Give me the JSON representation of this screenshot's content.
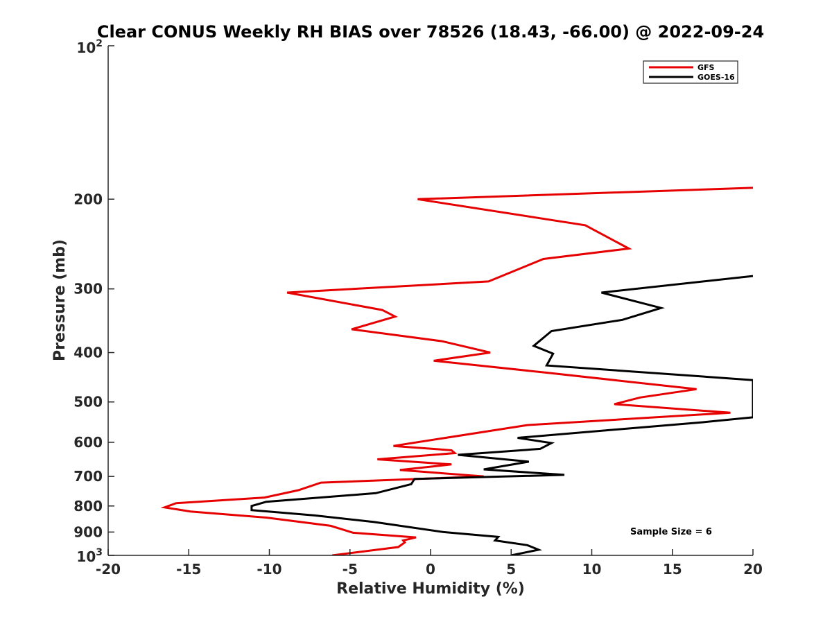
{
  "chart_data": {
    "type": "line",
    "title": "Clear CONUS Weekly RH BIAS over 78526 (18.43, -66.00) @ 2022-09-24",
    "xlabel": "Relative Humidity (%)",
    "ylabel": "Pressure (mb)",
    "xlim": [
      -20,
      20
    ],
    "ylim": [
      100,
      1000
    ],
    "y_scale": "log",
    "y_reversed": true,
    "grid": false,
    "legend_position": "top-right",
    "x_ticks": [
      -20,
      -15,
      -10,
      -5,
      0,
      5,
      10,
      15,
      20
    ],
    "x_tick_labels": [
      "-20",
      "-15",
      "-10",
      "-5",
      "0",
      "5",
      "10",
      "15",
      "20"
    ],
    "y_ticks": [
      200,
      300,
      400,
      500,
      600,
      700,
      800,
      900
    ],
    "y_tick_labels": [
      "200",
      "300",
      "400",
      "500",
      "600",
      "700",
      "800",
      "900"
    ],
    "y_end_labels": {
      "top_base": "10",
      "top_exp": "2",
      "bottom_base": "10",
      "bottom_exp": "3"
    },
    "series": [
      {
        "name": "GFS",
        "color": "#e60000",
        "x": [
          20.0,
          -0.8,
          9.6,
          12.3,
          7.0,
          3.6,
          -8.9,
          -3.0,
          -2.2,
          -4.9,
          0.7,
          3.7,
          0.2,
          7.2,
          16.5,
          13.0,
          11.4,
          18.6,
          6.0,
          -2.3,
          1.3,
          1.5,
          -3.3,
          1.3,
          -1.9,
          3.3,
          -6.8,
          -8.2,
          -10.3,
          -15.8,
          -16.5,
          -14.9,
          -10.2,
          -6.2,
          -4.8,
          -0.9,
          -1.7,
          -1.6,
          -2.0,
          -6.1
        ],
        "y": [
          190,
          200,
          225,
          250,
          262,
          290,
          305,
          330,
          340,
          360,
          380,
          400,
          415,
          438,
          472,
          490,
          505,
          525,
          555,
          610,
          622,
          630,
          648,
          663,
          680,
          700,
          720,
          745,
          770,
          790,
          805,
          820,
          843,
          875,
          903,
          922,
          935,
          943,
          963,
          1000
        ]
      },
      {
        "name": "GOES-16",
        "color": "#000000",
        "x": [
          20.0,
          10.6,
          14.3,
          11.9,
          7.5,
          6.4,
          7.6,
          7.2,
          20.0,
          20.0,
          16.9,
          5.4,
          7.5,
          6.8,
          1.7,
          6.1,
          3.3,
          8.3,
          -1.0,
          -1.2,
          -3.4,
          -10.2,
          -11.1,
          -11.1,
          -7.2,
          -3.5,
          0.8,
          4.2,
          4.0,
          6.0,
          6.7,
          5.0
        ],
        "y": [
          283,
          305,
          327,
          345,
          363,
          388,
          402,
          424,
          453,
          536,
          548,
          588,
          602,
          618,
          635,
          655,
          678,
          695,
          708,
          725,
          755,
          785,
          800,
          815,
          835,
          860,
          900,
          920,
          935,
          955,
          975,
          1000
        ]
      }
    ],
    "annotations": [
      "Sample Size = 6"
    ]
  }
}
